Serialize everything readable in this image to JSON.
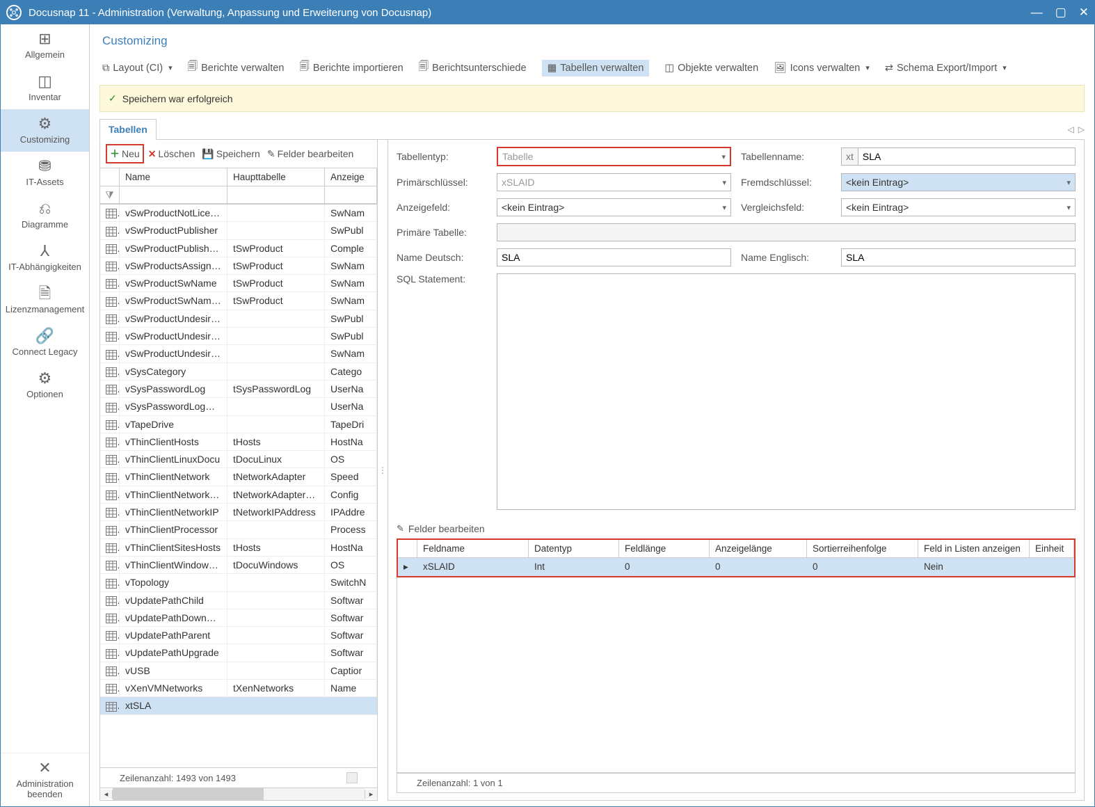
{
  "window": {
    "title": "Docusnap 11 - Administration (Verwaltung, Anpassung und Erweiterung von Docusnap)"
  },
  "sidebar": {
    "items": [
      {
        "label": "Allgemein",
        "icon": "grid"
      },
      {
        "label": "Inventar",
        "icon": "box"
      },
      {
        "label": "Customizing",
        "icon": "gears",
        "active": true
      },
      {
        "label": "IT-Assets",
        "icon": "coins"
      },
      {
        "label": "Diagramme",
        "icon": "share"
      },
      {
        "label": "IT-Abhängigkeiten",
        "icon": "tree"
      },
      {
        "label": "Lizenzmanagement",
        "icon": "doc"
      },
      {
        "label": "Connect Legacy",
        "icon": "link"
      },
      {
        "label": "Optionen",
        "icon": "gears"
      }
    ],
    "footer": {
      "label": "Administration beenden",
      "icon": "close"
    }
  },
  "header": {
    "breadcrumb": "Customizing",
    "toolbar": [
      {
        "label": "Layout (CI)",
        "dropdown": true
      },
      {
        "label": "Berichte verwalten"
      },
      {
        "label": "Berichte importieren"
      },
      {
        "label": "Berichtsunterschiede"
      },
      {
        "label": "Tabellen verwalten",
        "active": true
      },
      {
        "label": "Objekte verwalten"
      },
      {
        "label": "Icons verwalten",
        "dropdown": true
      },
      {
        "label": "Schema Export/Import",
        "dropdown": true
      }
    ],
    "banner": "Speichern war erfolgreich",
    "tab": "Tabellen"
  },
  "leftGrid": {
    "actions": {
      "neu": "Neu",
      "loeschen": "Löschen",
      "speichern": "Speichern",
      "felder": "Felder bearbeiten"
    },
    "columns": {
      "name": "Name",
      "main": "Haupttabelle",
      "display": "Anzeige"
    },
    "rows": [
      {
        "name": "vSwProductNotLicense…",
        "main": "",
        "display": "SwNam",
        "truncated": true
      },
      {
        "name": "vSwProductPublisher",
        "main": "",
        "display": "SwPubl"
      },
      {
        "name": "vSwProductPublisherVa…",
        "main": "tSwProduct",
        "display": "Comple"
      },
      {
        "name": "vSwProductsAssigned",
        "main": "tSwProduct",
        "display": "SwNam"
      },
      {
        "name": "vSwProductSwName",
        "main": "tSwProduct",
        "display": "SwNam"
      },
      {
        "name": "vSwProductSwNameVal…",
        "main": "tSwProduct",
        "display": "SwNam"
      },
      {
        "name": "vSwProductUndesiredL…",
        "main": "",
        "display": "SwPubl"
      },
      {
        "name": "vSwProductUndesiredL…",
        "main": "",
        "display": "SwPubl"
      },
      {
        "name": "vSwProductUndesiredL…",
        "main": "",
        "display": "SwNam"
      },
      {
        "name": "vSysCategory",
        "main": "",
        "display": "Catego"
      },
      {
        "name": "vSysPasswordLog",
        "main": "tSysPasswordLog",
        "display": "UserNa"
      },
      {
        "name": "vSysPasswordLogUpdIns",
        "main": "",
        "display": "UserNa"
      },
      {
        "name": "vTapeDrive",
        "main": "",
        "display": "TapeDri"
      },
      {
        "name": "vThinClientHosts",
        "main": "tHosts",
        "display": "HostNa"
      },
      {
        "name": "vThinClientLinuxDocu",
        "main": "tDocuLinux",
        "display": "OS"
      },
      {
        "name": "vThinClientNetwork",
        "main": "tNetworkAdapter",
        "display": "Speed"
      },
      {
        "name": "vThinClientNetworkAd…",
        "main": "tNetworkAdapterCon…",
        "display": "Config"
      },
      {
        "name": "vThinClientNetworkIP",
        "main": "tNetworkIPAddress",
        "display": "IPAddre"
      },
      {
        "name": "vThinClientProcessor",
        "main": "",
        "display": "Process"
      },
      {
        "name": "vThinClientSitesHosts",
        "main": "tHosts",
        "display": "HostNa"
      },
      {
        "name": "vThinClientWindowsDo…",
        "main": "tDocuWindows",
        "display": "OS"
      },
      {
        "name": "vTopology",
        "main": "",
        "display": "SwitchN"
      },
      {
        "name": "vUpdatePathChild",
        "main": "",
        "display": "Softwar"
      },
      {
        "name": "vUpdatePathDowngrade",
        "main": "",
        "display": "Softwar"
      },
      {
        "name": "vUpdatePathParent",
        "main": "",
        "display": "Softwar"
      },
      {
        "name": "vUpdatePathUpgrade",
        "main": "",
        "display": "Softwar"
      },
      {
        "name": "vUSB",
        "main": "",
        "display": "Captior"
      },
      {
        "name": "vXenVMNetworks",
        "main": "tXenNetworks",
        "display": "Name"
      },
      {
        "name": "xtSLA",
        "main": "",
        "display": "",
        "selected": true
      }
    ],
    "footer": "Zeilenanzahl: 1493 von 1493"
  },
  "form": {
    "labels": {
      "tableType": "Tabellentyp:",
      "tableName": "Tabellenname:",
      "primaryKey": "Primärschlüssel:",
      "foreignKey": "Fremdschlüssel:",
      "displayField": "Anzeigefeld:",
      "compareField": "Vergleichsfeld:",
      "primaryTable": "Primäre Tabelle:",
      "nameDe": "Name Deutsch:",
      "nameEn": "Name Englisch:",
      "sql": "SQL Statement:"
    },
    "values": {
      "tableType": "Tabelle",
      "tableNamePrefix": "xt",
      "tableName": "SLA",
      "primaryKey": "xSLAID",
      "foreignKey": "<kein Eintrag>",
      "displayField": "<kein Eintrag>",
      "compareField": "<kein Eintrag>",
      "primaryTable": "",
      "nameDe": "SLA",
      "nameEn": "SLA",
      "sql": ""
    },
    "fieldsHeader": "Felder bearbeiten",
    "fieldsColumns": {
      "name": "Feldname",
      "type": "Datentyp",
      "length": "Feldlänge",
      "displayLength": "Anzeigelänge",
      "sort": "Sortierreihenfolge",
      "showInList": "Feld in Listen anzeigen",
      "unit": "Einheit"
    },
    "fieldsRows": [
      {
        "name": "xSLAID",
        "type": "Int",
        "length": "0",
        "displayLength": "0",
        "sort": "0",
        "showInList": "Nein",
        "unit": ""
      }
    ],
    "fieldsFooter": "Zeilenanzahl: 1 von 1"
  },
  "colors": {
    "accent": "#3c7fb7",
    "highlight": "#cfe2f3",
    "red": "#d43a2c",
    "banner_bg": "#fef9da"
  }
}
